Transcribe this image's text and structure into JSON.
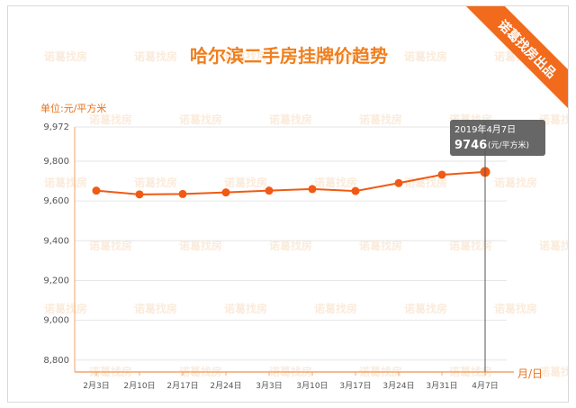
{
  "ribbon": {
    "text": "诺葛找房出品",
    "color": "#f26a1b"
  },
  "watermark": {
    "text": "诺葛找房"
  },
  "chart_data": {
    "type": "line",
    "title": "哈尔滨二手房挂牌价趋势",
    "ylabel": "单位:元/平方米",
    "xlabel": "月/日",
    "categories": [
      "2月3日",
      "2月10日",
      "2月17日",
      "2月24日",
      "3月3日",
      "3月10日",
      "3月17日",
      "3月24日",
      "3月31日",
      "4月7日"
    ],
    "series": [
      {
        "values": [
          9652,
          9633,
          9635,
          9643,
          9652,
          9660,
          9650,
          9690,
          9732,
          9746
        ],
        "color": "#f05a14"
      }
    ],
    "yticks": [
      8800,
      9000,
      9200,
      9400,
      9600,
      9800,
      9972
    ],
    "ytick_labels": [
      "8,800",
      "9,000",
      "9,200",
      "9,400",
      "9,600",
      "9,800",
      "9,972"
    ],
    "ylim": [
      8740,
      9972
    ],
    "grid": true,
    "axis_color": "#f5a36a",
    "tooltip": {
      "date": "2019年4月7日",
      "value": "9746",
      "unit": "(元/平方米)",
      "index": 9
    }
  }
}
